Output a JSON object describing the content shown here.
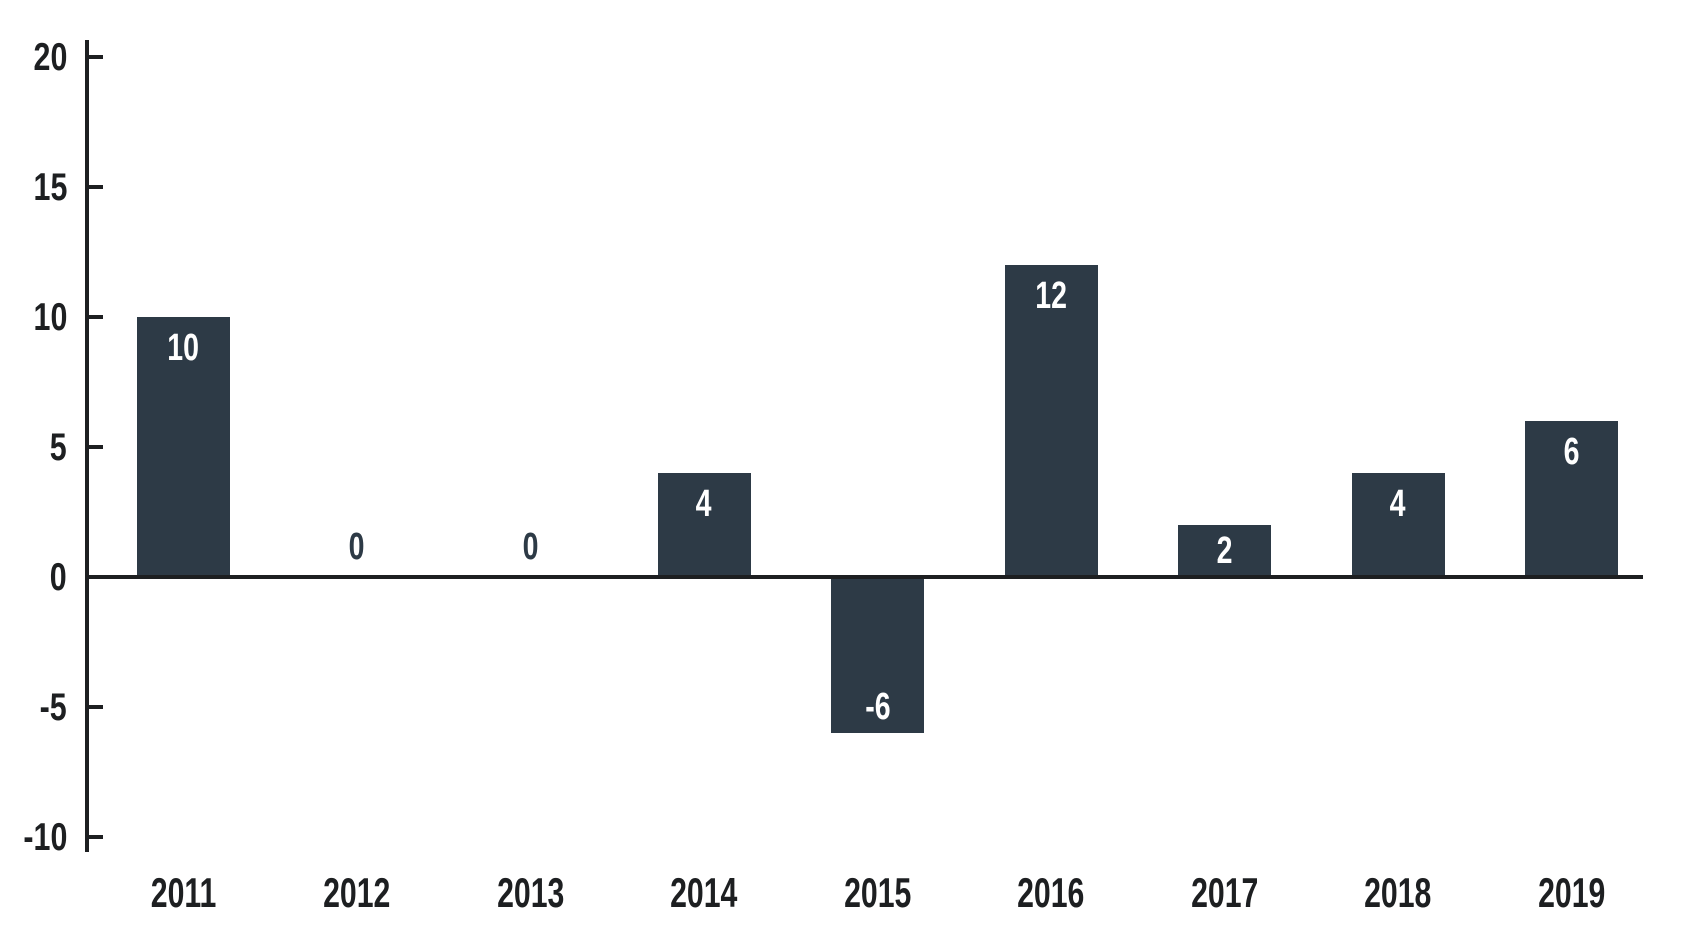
{
  "chart_data": {
    "type": "bar",
    "title": "",
    "xlabel": "",
    "ylabel": "",
    "categories": [
      "2011",
      "2012",
      "2013",
      "2014",
      "2015",
      "2016",
      "2017",
      "2018",
      "2019"
    ],
    "values": [
      10,
      0,
      0,
      4,
      -6,
      12,
      2,
      4,
      6
    ],
    "data_labels": [
      "10",
      "0",
      "0",
      "4",
      "-6",
      "12",
      "2",
      "4",
      "6"
    ],
    "ytick_labels": [
      "20",
      "15",
      "10",
      "5",
      "0",
      "-5",
      "-10"
    ],
    "ytick_values": [
      20,
      15,
      10,
      5,
      0,
      -5,
      -10
    ],
    "ylim": [
      -10,
      20
    ],
    "grid": false,
    "legend_position": "none",
    "colors": {
      "bar": "#2d3a46",
      "axis": "#1d1f21",
      "tick_text": "#1d1f21",
      "label_inside_bar": "#ffffff",
      "label_zero_value": "#2d3a46",
      "background": "#ffffff"
    }
  }
}
